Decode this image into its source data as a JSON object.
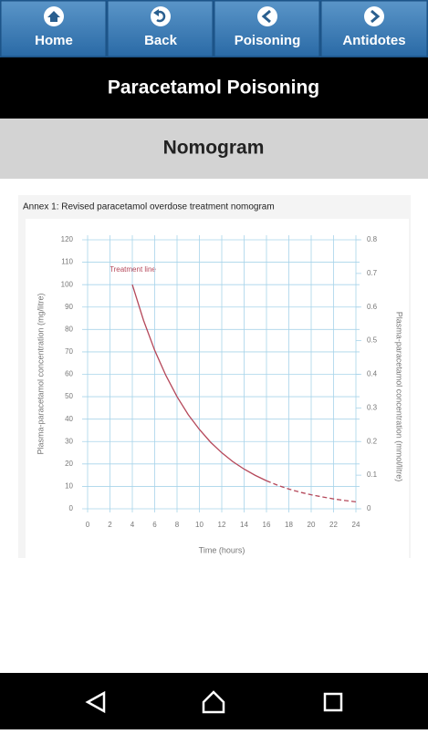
{
  "nav": [
    {
      "label": "Home"
    },
    {
      "label": "Back"
    },
    {
      "label": "Poisoning"
    },
    {
      "label": "Antidotes"
    }
  ],
  "header": {
    "title": "Paracetamol Poisoning"
  },
  "section": {
    "title": "Nomogram"
  },
  "chart_data": {
    "type": "line",
    "title": "Annex 1: Revised paracetamol overdose treatment nomogram",
    "xlabel": "Time (hours)",
    "ylabel": "Plasma-paracetamol concentration (mg/litre)",
    "y2label": "Plasma-paracetamol concentration (mmol/litre)",
    "annotation": "Treatment line",
    "xlim": [
      0,
      24
    ],
    "xticks": [
      0,
      2,
      4,
      6,
      8,
      10,
      12,
      14,
      16,
      18,
      20,
      22,
      24
    ],
    "ylim": [
      0,
      120
    ],
    "yticks": [
      0,
      10,
      20,
      30,
      40,
      50,
      60,
      70,
      80,
      90,
      100,
      110,
      120
    ],
    "y2lim": [
      0,
      0.8
    ],
    "y2ticks": [
      0,
      0.1,
      0.2,
      0.3,
      0.4,
      0.5,
      0.6,
      0.7,
      0.8
    ],
    "grid": true,
    "series": [
      {
        "color": "#b5485a",
        "style": "solid",
        "x": [
          4,
          5,
          6,
          7,
          8,
          9,
          10,
          11,
          12,
          13,
          14,
          15,
          16
        ],
        "values": [
          100,
          84.1,
          70.7,
          59.5,
          50,
          42,
          35.4,
          29.7,
          25,
          21,
          17.7,
          14.9,
          12.5
        ]
      },
      {
        "color": "#b5485a",
        "style": "dashed",
        "x": [
          16,
          17,
          18,
          19,
          20,
          21,
          22,
          23,
          24
        ],
        "values": [
          12.5,
          10.5,
          8.8,
          7.4,
          6.25,
          5.3,
          4.4,
          3.7,
          3.1
        ]
      }
    ]
  }
}
